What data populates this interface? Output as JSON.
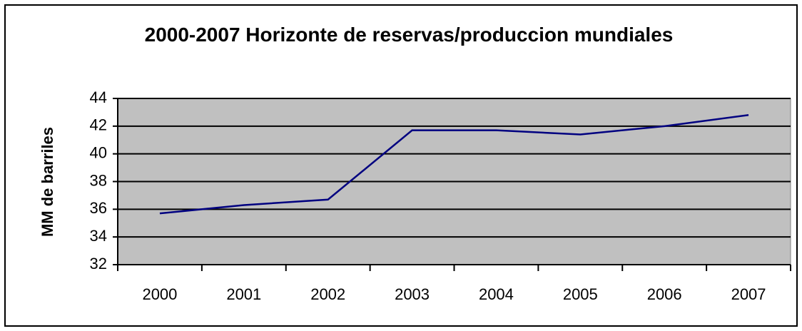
{
  "chart_data": {
    "type": "line",
    "title": "2000-2007 Horizonte de reservas/produccion mundiales",
    "ylabel": "MM de barriles",
    "categories": [
      "2000",
      "2001",
      "2002",
      "2003",
      "2004",
      "2005",
      "2006",
      "2007"
    ],
    "series": [
      {
        "name": "Horizonte",
        "color": "#000080",
        "values": [
          35.7,
          36.3,
          36.7,
          41.7,
          41.7,
          41.4,
          42.0,
          42.8
        ]
      }
    ],
    "ylim": [
      32,
      44
    ],
    "yticks": [
      32,
      34,
      36,
      38,
      40,
      42,
      44
    ],
    "grid": true
  }
}
